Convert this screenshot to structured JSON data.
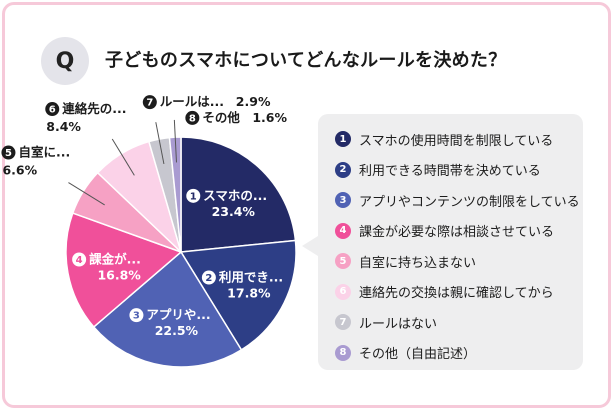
{
  "header": {
    "q_letter": "Q",
    "question": "子どものスマホについてどんなルールを決めた？"
  },
  "legend": {
    "items": [
      {
        "number": "1",
        "label": "スマホの使用時間を制限している"
      },
      {
        "number": "2",
        "label": "利用できる時間帯を決めている"
      },
      {
        "number": "3",
        "label": "アプリやコンテンツの制限をしている"
      },
      {
        "number": "4",
        "label": "課金が必要な際は相談させている"
      },
      {
        "number": "5",
        "label": "自室に持ち込まない"
      },
      {
        "number": "6",
        "label": "連絡先の交換は親に確認してから"
      },
      {
        "number": "7",
        "label": "ルールはない"
      },
      {
        "number": "8",
        "label": "その他（自由記述）"
      }
    ]
  },
  "chart_data": {
    "type": "pie",
    "title": "子どものスマホについてどんなルールを決めた？",
    "start": "12 o'clock, clockwise",
    "series": [
      {
        "number": "1",
        "label": "スマホの使用時間を制限している",
        "short_label": "スマホの...",
        "value": 23.4,
        "value_text": "23.4%",
        "color": "#232a66",
        "text_color": "#ffffff",
        "label_inside": true
      },
      {
        "number": "2",
        "label": "利用できる時間帯を決めている",
        "short_label": "利用でき...",
        "value": 17.8,
        "value_text": "17.8%",
        "color": "#2d3e86",
        "text_color": "#ffffff",
        "label_inside": true
      },
      {
        "number": "3",
        "label": "アプリやコンテンツの制限をしている",
        "short_label": "アプリや...",
        "value": 22.5,
        "value_text": "22.5%",
        "color": "#5062b4",
        "text_color": "#ffffff",
        "label_inside": true
      },
      {
        "number": "4",
        "label": "課金が必要な際は相談させている",
        "short_label": "課金が...",
        "value": 16.8,
        "value_text": "16.8%",
        "color": "#f0509a",
        "text_color": "#ffffff",
        "label_inside": true
      },
      {
        "number": "5",
        "label": "自室に持ち込まない",
        "short_label": "自室に...",
        "value": 6.6,
        "value_text": "6.6%",
        "color": "#f6a1c4",
        "text_color": "#1c1c1c",
        "label_inside": false
      },
      {
        "number": "6",
        "label": "連絡先の交換は親に確認してから",
        "short_label": "連絡先の...",
        "value": 8.4,
        "value_text": "8.4%",
        "color": "#fbd2e8",
        "text_color": "#1c1c1c",
        "label_inside": false
      },
      {
        "number": "7",
        "label": "ルールはない",
        "short_label": "ルールは...",
        "value": 2.9,
        "value_text": "2.9%",
        "color": "#c7c7cf",
        "text_color": "#1c1c1c",
        "label_inside": false
      },
      {
        "number": "8",
        "label": "その他（自由記述）",
        "short_label": "その他",
        "value": 1.6,
        "value_text": "1.6%",
        "color": "#a99bd1",
        "text_color": "#1c1c1c",
        "label_inside": false
      }
    ]
  }
}
